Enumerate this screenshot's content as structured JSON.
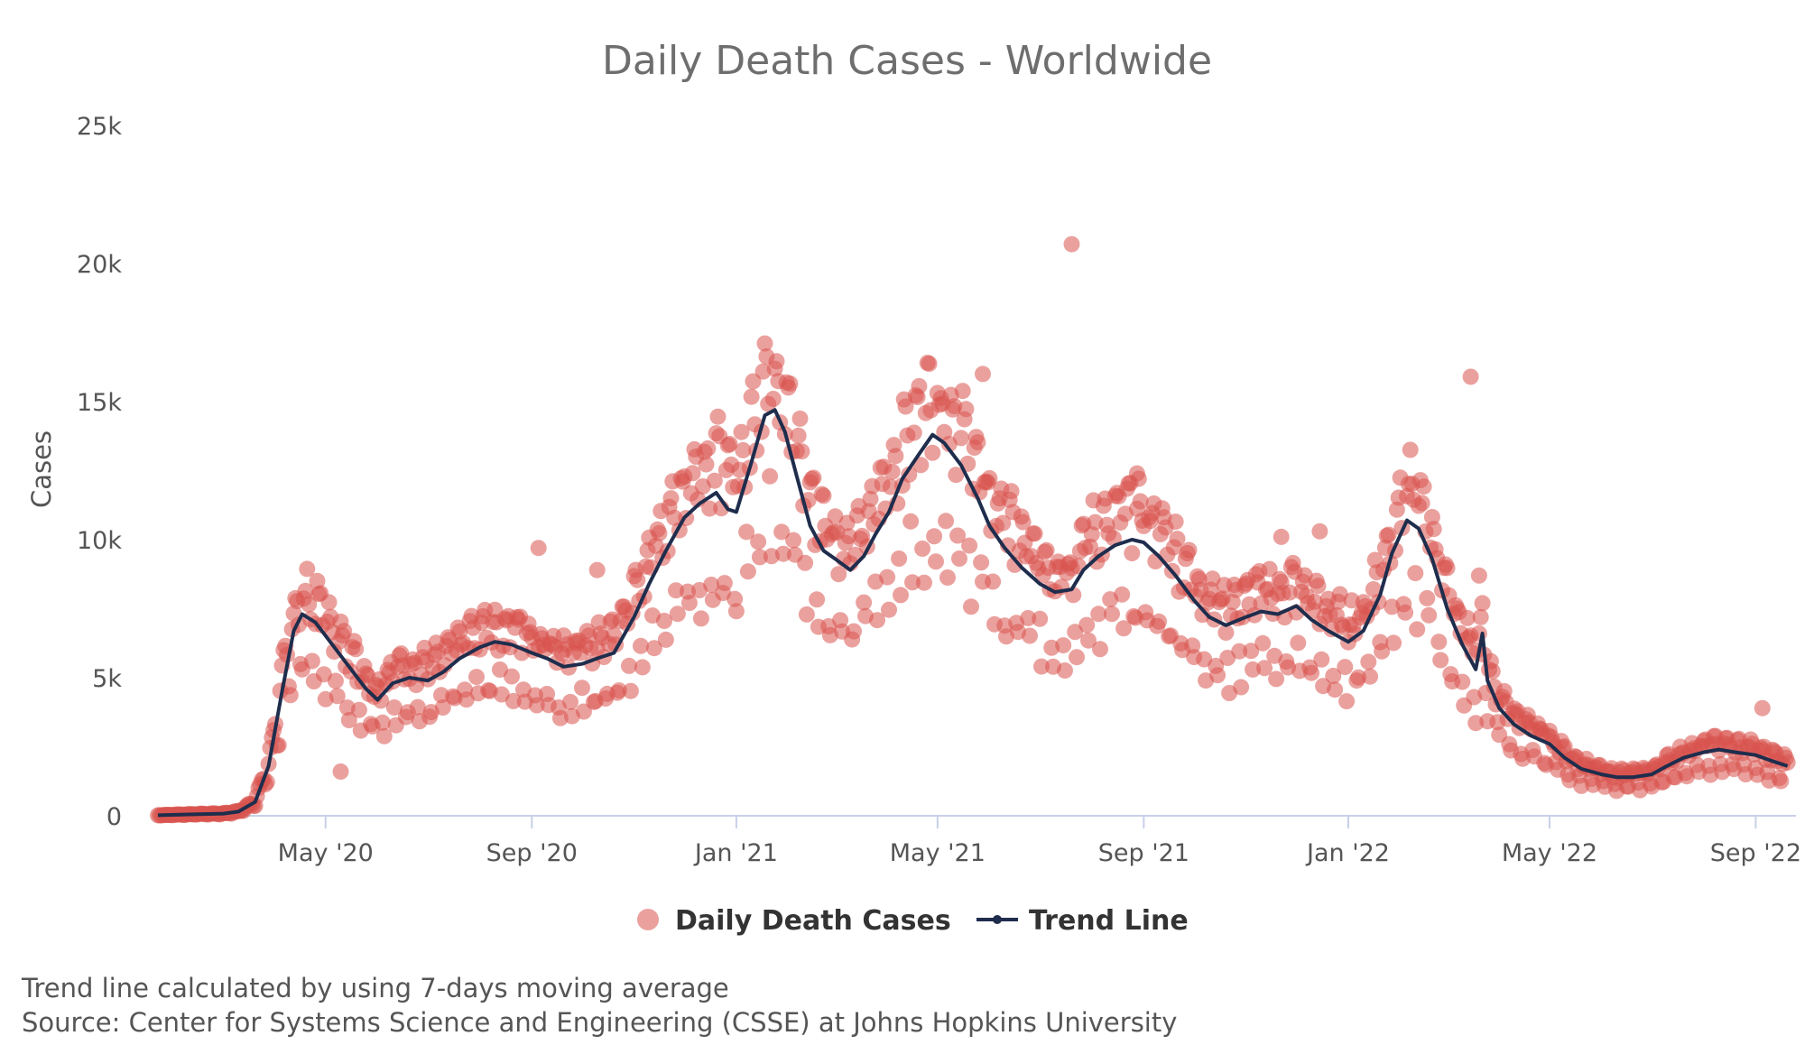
{
  "chart_data": {
    "type": "scatter",
    "title": "Daily Death Cases - Worldwide",
    "xlabel": "",
    "ylabel": "Cases",
    "ylim": [
      0,
      25000
    ],
    "xlim": [
      "2020-01-22",
      "2022-09-25"
    ],
    "yticks": [
      {
        "value": 0,
        "label": "0"
      },
      {
        "value": 5000,
        "label": "5k"
      },
      {
        "value": 10000,
        "label": "10k"
      },
      {
        "value": 15000,
        "label": "15k"
      },
      {
        "value": 20000,
        "label": "20k"
      },
      {
        "value": 25000,
        "label": "25k"
      }
    ],
    "xticks": [
      {
        "date": "2020-05-01",
        "label": "May '20"
      },
      {
        "date": "2020-09-01",
        "label": "Sep '20"
      },
      {
        "date": "2021-01-01",
        "label": "Jan '21"
      },
      {
        "date": "2021-05-01",
        "label": "May '21"
      },
      {
        "date": "2021-09-01",
        "label": "Sep '21"
      },
      {
        "date": "2022-01-01",
        "label": "Jan '22"
      },
      {
        "date": "2022-05-01",
        "label": "May '22"
      },
      {
        "date": "2022-09-01",
        "label": "Sep '22"
      }
    ],
    "grid": false,
    "legend_position": "bottom-center",
    "series": [
      {
        "name": "Daily Death Cases",
        "kind": "scatter",
        "color": "#d9534f"
      },
      {
        "name": "Trend Line",
        "kind": "line",
        "color": "#1f2d4d"
      }
    ],
    "trend_line": {
      "name": "Trend Line",
      "method": "7-day moving average",
      "points": [
        [
          "2020-01-22",
          20
        ],
        [
          "2020-02-15",
          60
        ],
        [
          "2020-03-01",
          80
        ],
        [
          "2020-03-10",
          150
        ],
        [
          "2020-03-20",
          500
        ],
        [
          "2020-03-28",
          1800
        ],
        [
          "2020-04-05",
          4500
        ],
        [
          "2020-04-12",
          6700
        ],
        [
          "2020-04-17",
          7300
        ],
        [
          "2020-04-25",
          7000
        ],
        [
          "2020-05-05",
          6200
        ],
        [
          "2020-05-15",
          5400
        ],
        [
          "2020-05-25",
          4600
        ],
        [
          "2020-06-01",
          4200
        ],
        [
          "2020-06-10",
          4800
        ],
        [
          "2020-06-20",
          5000
        ],
        [
          "2020-07-01",
          4900
        ],
        [
          "2020-07-10",
          5200
        ],
        [
          "2020-07-20",
          5700
        ],
        [
          "2020-08-01",
          6100
        ],
        [
          "2020-08-10",
          6300
        ],
        [
          "2020-08-20",
          6200
        ],
        [
          "2020-09-01",
          5900
        ],
        [
          "2020-09-10",
          5700
        ],
        [
          "2020-09-20",
          5400
        ],
        [
          "2020-10-01",
          5500
        ],
        [
          "2020-10-10",
          5700
        ],
        [
          "2020-10-20",
          5900
        ],
        [
          "2020-11-01",
          7200
        ],
        [
          "2020-11-10",
          8400
        ],
        [
          "2020-11-20",
          9600
        ],
        [
          "2020-12-01",
          10800
        ],
        [
          "2020-12-10",
          11300
        ],
        [
          "2020-12-20",
          11700
        ],
        [
          "2020-12-27",
          11100
        ],
        [
          "2021-01-01",
          11000
        ],
        [
          "2021-01-10",
          12800
        ],
        [
          "2021-01-18",
          14500
        ],
        [
          "2021-01-24",
          14700
        ],
        [
          "2021-01-30",
          13900
        ],
        [
          "2021-02-06",
          12300
        ],
        [
          "2021-02-14",
          10500
        ],
        [
          "2021-02-22",
          9600
        ],
        [
          "2021-03-01",
          9300
        ],
        [
          "2021-03-10",
          8900
        ],
        [
          "2021-03-18",
          9400
        ],
        [
          "2021-03-25",
          10200
        ],
        [
          "2021-04-02",
          11000
        ],
        [
          "2021-04-10",
          12200
        ],
        [
          "2021-04-20",
          13100
        ],
        [
          "2021-04-28",
          13800
        ],
        [
          "2021-05-05",
          13500
        ],
        [
          "2021-05-15",
          12700
        ],
        [
          "2021-05-25",
          11500
        ],
        [
          "2021-06-01",
          10500
        ],
        [
          "2021-06-10",
          9700
        ],
        [
          "2021-06-20",
          9000
        ],
        [
          "2021-07-01",
          8400
        ],
        [
          "2021-07-10",
          8100
        ],
        [
          "2021-07-20",
          8200
        ],
        [
          "2021-07-27",
          8900
        ],
        [
          "2021-08-05",
          9400
        ],
        [
          "2021-08-15",
          9800
        ],
        [
          "2021-08-25",
          10000
        ],
        [
          "2021-09-01",
          9900
        ],
        [
          "2021-09-10",
          9400
        ],
        [
          "2021-09-20",
          8700
        ],
        [
          "2021-10-01",
          7800
        ],
        [
          "2021-10-10",
          7200
        ],
        [
          "2021-10-20",
          6900
        ],
        [
          "2021-11-01",
          7200
        ],
        [
          "2021-11-10",
          7400
        ],
        [
          "2021-11-20",
          7300
        ],
        [
          "2021-12-01",
          7600
        ],
        [
          "2021-12-10",
          7100
        ],
        [
          "2021-12-20",
          6700
        ],
        [
          "2022-01-01",
          6300
        ],
        [
          "2022-01-10",
          6700
        ],
        [
          "2022-01-20",
          8000
        ],
        [
          "2022-01-27",
          9500
        ],
        [
          "2022-02-05",
          10700
        ],
        [
          "2022-02-12",
          10400
        ],
        [
          "2022-02-20",
          9300
        ],
        [
          "2022-03-01",
          7500
        ],
        [
          "2022-03-10",
          6200
        ],
        [
          "2022-03-18",
          5300
        ],
        [
          "2022-03-22",
          6600
        ],
        [
          "2022-03-25",
          4900
        ],
        [
          "2022-04-01",
          3900
        ],
        [
          "2022-04-10",
          3300
        ],
        [
          "2022-04-20",
          2900
        ],
        [
          "2022-05-01",
          2600
        ],
        [
          "2022-05-10",
          2100
        ],
        [
          "2022-05-20",
          1700
        ],
        [
          "2022-06-01",
          1500
        ],
        [
          "2022-06-10",
          1400
        ],
        [
          "2022-06-20",
          1400
        ],
        [
          "2022-07-01",
          1500
        ],
        [
          "2022-07-10",
          1800
        ],
        [
          "2022-07-20",
          2100
        ],
        [
          "2022-08-01",
          2300
        ],
        [
          "2022-08-10",
          2400
        ],
        [
          "2022-08-20",
          2300
        ],
        [
          "2022-09-01",
          2200
        ],
        [
          "2022-09-10",
          2000
        ],
        [
          "2022-09-20",
          1800
        ]
      ]
    }
  },
  "colors": {
    "scatter": "#d9534f",
    "trend": "#1f2d4d",
    "axis": "#c8d0e8",
    "title": "#6e6e6e",
    "text": "#555555"
  },
  "footer": {
    "note": "Trend line calculated by using 7-days moving average",
    "source": "Source: Center for Systems Science and Engineering (CSSE) at Johns Hopkins University"
  }
}
